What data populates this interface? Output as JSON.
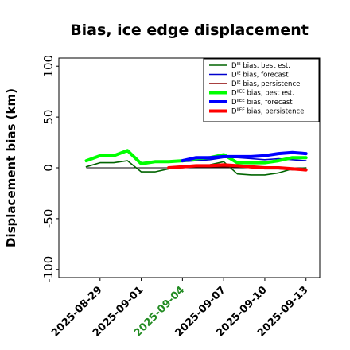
{
  "chart_data": {
    "type": "line",
    "title": "Bias, ice edge displacement",
    "ylabel": "Displacement bias (km)",
    "xlabel": "",
    "xlim": [
      "2025-08-26",
      "2025-09-14"
    ],
    "ylim": [
      -108,
      108
    ],
    "yticks": [
      -100,
      -50,
      0,
      50,
      100
    ],
    "xticks": [
      {
        "date": "2025-08-29",
        "label": "2025-08-29",
        "color": "#000000"
      },
      {
        "date": "2025-09-01",
        "label": "2025-09-01",
        "color": "#000000"
      },
      {
        "date": "2025-09-04",
        "label": "2025-09-04",
        "color": "#228B22"
      },
      {
        "date": "2025-09-07",
        "label": "2025-09-07",
        "color": "#000000"
      },
      {
        "date": "2025-09-10",
        "label": "2025-09-10",
        "color": "#000000"
      },
      {
        "date": "2025-09-13",
        "label": "2025-09-13",
        "color": "#000000"
      }
    ],
    "legend_position": "top-right",
    "zero_line": true,
    "series": [
      {
        "name": "D bias, best est.",
        "name_parts": [
          "D",
          "IE",
          " bias, best est."
        ],
        "color": "#006400",
        "width": 1.6,
        "points": [
          [
            "2025-08-28",
            1
          ],
          [
            "2025-08-29",
            5
          ],
          [
            "2025-08-30",
            5
          ],
          [
            "2025-08-31",
            7
          ],
          [
            "2025-09-01",
            -4
          ],
          [
            "2025-09-02",
            -4
          ],
          [
            "2025-09-03",
            -1
          ],
          [
            "2025-09-04",
            1
          ],
          [
            "2025-09-05",
            2
          ],
          [
            "2025-09-06",
            3
          ],
          [
            "2025-09-07",
            6
          ],
          [
            "2025-09-08",
            -6
          ],
          [
            "2025-09-09",
            -7
          ],
          [
            "2025-09-10",
            -7
          ],
          [
            "2025-09-11",
            -5
          ],
          [
            "2025-09-12",
            -1
          ],
          [
            "2025-09-13",
            0
          ]
        ]
      },
      {
        "name": "D bias, forecast",
        "name_parts": [
          "D",
          "IE",
          " bias, forecast"
        ],
        "color": "#0000CD",
        "width": 1.6,
        "points": [
          [
            "2025-09-04",
            6
          ],
          [
            "2025-09-05",
            7
          ],
          [
            "2025-09-06",
            8
          ],
          [
            "2025-09-07",
            10
          ],
          [
            "2025-09-08",
            10
          ],
          [
            "2025-09-09",
            9
          ],
          [
            "2025-09-10",
            8
          ],
          [
            "2025-09-11",
            9
          ],
          [
            "2025-09-12",
            8
          ],
          [
            "2025-09-13",
            7
          ]
        ]
      },
      {
        "name": "D bias, persistence",
        "name_parts": [
          "D",
          "IE",
          " bias, persistence"
        ],
        "color": "#8B0000",
        "width": 1.6,
        "points": [
          [
            "2025-09-03",
            0
          ],
          [
            "2025-09-04",
            0
          ],
          [
            "2025-09-05",
            1
          ],
          [
            "2025-09-06",
            1
          ],
          [
            "2025-09-07",
            1
          ],
          [
            "2025-09-08",
            1
          ],
          [
            "2025-09-09",
            0
          ],
          [
            "2025-09-10",
            -1
          ],
          [
            "2025-09-11",
            -1
          ],
          [
            "2025-09-12",
            -2
          ],
          [
            "2025-09-13",
            -2
          ]
        ]
      },
      {
        "name": "D bias, best est.",
        "name_parts": [
          "D",
          "IIEE",
          " bias, best est."
        ],
        "color": "#00FF00",
        "width": 4,
        "points": [
          [
            "2025-08-28",
            7
          ],
          [
            "2025-08-29",
            12
          ],
          [
            "2025-08-30",
            12
          ],
          [
            "2025-08-31",
            17
          ],
          [
            "2025-09-01",
            4
          ],
          [
            "2025-09-02",
            6
          ],
          [
            "2025-09-03",
            6
          ],
          [
            "2025-09-04",
            7
          ],
          [
            "2025-09-05",
            9
          ],
          [
            "2025-09-06",
            10
          ],
          [
            "2025-09-07",
            13
          ],
          [
            "2025-09-08",
            5
          ],
          [
            "2025-09-09",
            5
          ],
          [
            "2025-09-10",
            5
          ],
          [
            "2025-09-11",
            7
          ],
          [
            "2025-09-12",
            10
          ],
          [
            "2025-09-13",
            10
          ]
        ]
      },
      {
        "name": "D bias, forecast",
        "name_parts": [
          "D",
          "IIEE",
          " bias, forecast"
        ],
        "color": "#0000FF",
        "width": 4,
        "points": [
          [
            "2025-09-04",
            7
          ],
          [
            "2025-09-05",
            10
          ],
          [
            "2025-09-06",
            10
          ],
          [
            "2025-09-07",
            11
          ],
          [
            "2025-09-08",
            11
          ],
          [
            "2025-09-09",
            11
          ],
          [
            "2025-09-10",
            12
          ],
          [
            "2025-09-11",
            14
          ],
          [
            "2025-09-12",
            15
          ],
          [
            "2025-09-13",
            14
          ]
        ]
      },
      {
        "name": "D bias, persistence",
        "name_parts": [
          "D",
          "IIEE",
          " bias, persistence"
        ],
        "color": "#FF0000",
        "width": 4,
        "points": [
          [
            "2025-09-03",
            0
          ],
          [
            "2025-09-04",
            1
          ],
          [
            "2025-09-05",
            2
          ],
          [
            "2025-09-06",
            2
          ],
          [
            "2025-09-07",
            3
          ],
          [
            "2025-09-08",
            2
          ],
          [
            "2025-09-09",
            1
          ],
          [
            "2025-09-10",
            0
          ],
          [
            "2025-09-11",
            0
          ],
          [
            "2025-09-12",
            -1
          ],
          [
            "2025-09-13",
            -2
          ]
        ]
      }
    ]
  }
}
